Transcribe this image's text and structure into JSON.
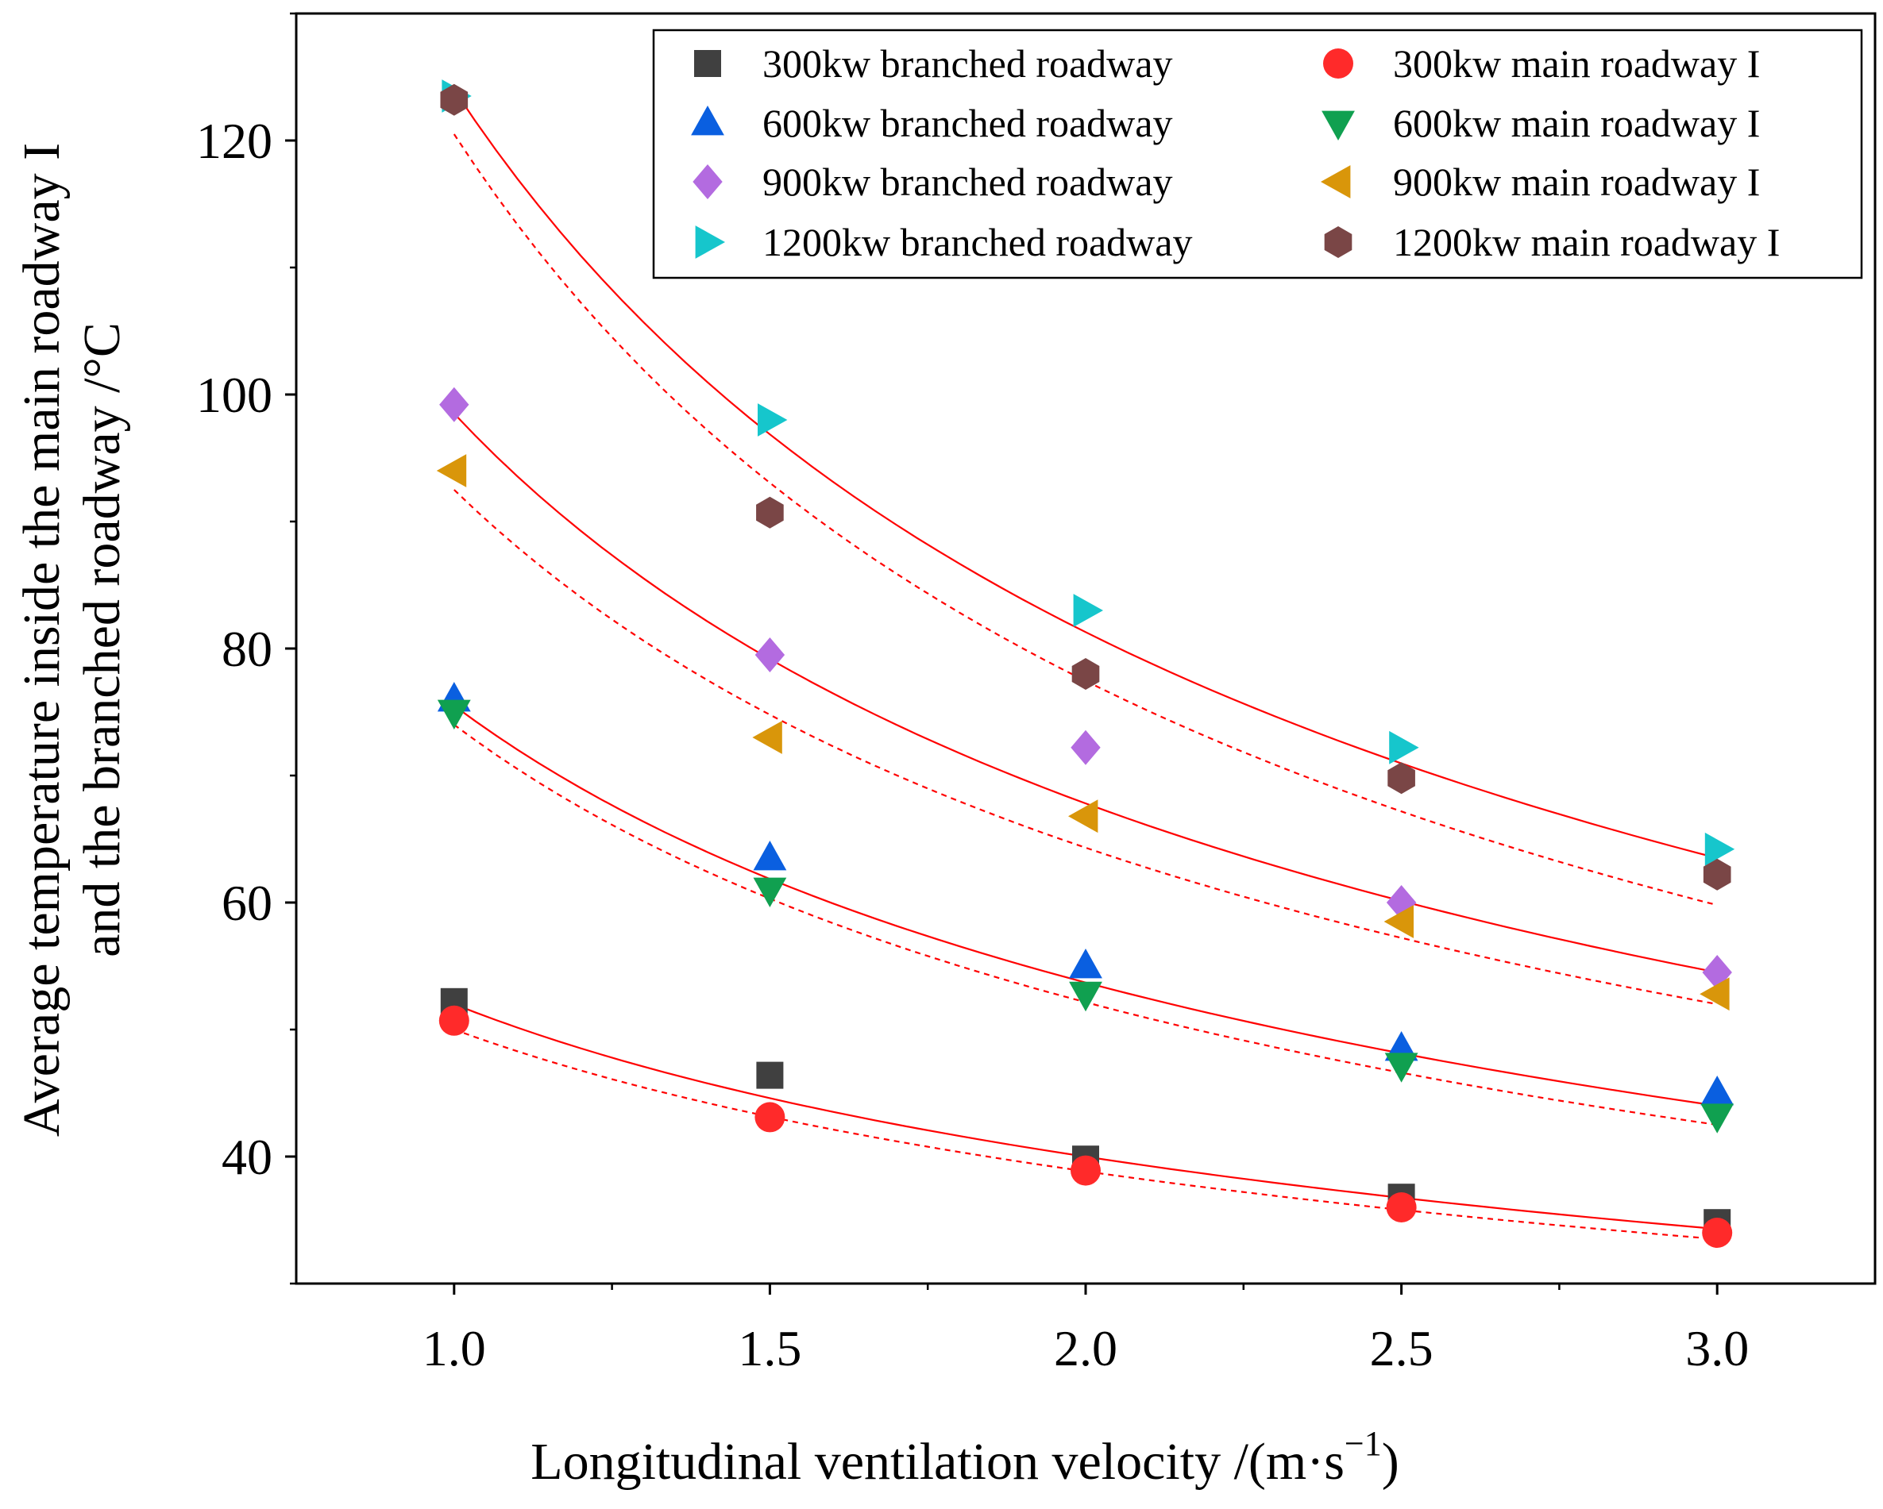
{
  "chart_data": {
    "type": "scatter",
    "title": "",
    "xlabel": "Longitudinal ventilation velocity /(m·s",
    "xlabel_sup": "−1",
    "xlabel_end": ")",
    "ylabel_line1": "Average temperature inside the main roadway I",
    "ylabel_line2": "and the branched roadway /°C",
    "xlim": [
      0.75,
      3.25
    ],
    "ylim": [
      30,
      130
    ],
    "xticks": [
      1.0,
      1.5,
      2.0,
      2.5,
      3.0
    ],
    "xtick_labels": [
      "1.0",
      "1.5",
      "2.0",
      "2.5",
      "3.0"
    ],
    "yticks": [
      40,
      60,
      80,
      100,
      120
    ],
    "ytick_labels": [
      "40",
      "60",
      "80",
      "100",
      "120"
    ],
    "legend_position": "top-right",
    "x": [
      1.0,
      1.5,
      2.0,
      2.5,
      3.0
    ],
    "series": [
      {
        "name": "300kw branched roadway",
        "marker": "square",
        "color": "#404040",
        "values": [
          52.2,
          46.4,
          39.8,
          36.8,
          34.8
        ]
      },
      {
        "name": "300kw main roadway I",
        "marker": "circle",
        "color": "#ff2a2a",
        "values": [
          50.7,
          43.1,
          38.9,
          36.0,
          34.0
        ]
      },
      {
        "name": "600kw branched roadway",
        "marker": "triangle-up",
        "color": "#0a5fe0",
        "values": [
          76.0,
          63.5,
          55.0,
          48.5,
          45.0
        ]
      },
      {
        "name": "600kw main roadway I",
        "marker": "triangle-down",
        "color": "#10a050",
        "values": [
          75.0,
          61.0,
          52.8,
          47.2,
          43.2
        ]
      },
      {
        "name": "900kw branched roadway",
        "marker": "diamond",
        "color": "#b36be0",
        "values": [
          99.2,
          79.5,
          72.2,
          60.0,
          54.5
        ]
      },
      {
        "name": "900kw main roadway I",
        "marker": "triangle-left",
        "color": "#d9960a",
        "values": [
          94.0,
          73.0,
          66.8,
          58.5,
          52.8
        ]
      },
      {
        "name": "1200kw branched roadway",
        "marker": "triangle-right",
        "color": "#16c6cc",
        "values": [
          123.5,
          98.0,
          83.0,
          72.2,
          64.2
        ]
      },
      {
        "name": "1200kw main roadway I",
        "marker": "hexagon",
        "color": "#7a4646",
        "values": [
          123.2,
          90.7,
          78.0,
          69.8,
          62.2
        ]
      }
    ],
    "fit_curves": [
      {
        "style": "solid",
        "color": "#ff0000",
        "x": [
          1.0,
          3.0
        ],
        "values": [
          52.0,
          34.3
        ]
      },
      {
        "style": "dashed",
        "color": "#ff0000",
        "x": [
          1.0,
          3.0
        ],
        "values": [
          50.0,
          33.5
        ]
      },
      {
        "style": "solid",
        "color": "#ff0000",
        "x": [
          1.0,
          3.0
        ],
        "values": [
          75.5,
          44.0
        ]
      },
      {
        "style": "dashed",
        "color": "#ff0000",
        "x": [
          1.0,
          3.0
        ],
        "values": [
          74.0,
          42.5
        ]
      },
      {
        "style": "solid",
        "color": "#ff0000",
        "x": [
          1.0,
          3.0
        ],
        "values": [
          98.5,
          54.5
        ]
      },
      {
        "style": "dashed",
        "color": "#ff0000",
        "x": [
          1.0,
          3.0
        ],
        "values": [
          92.5,
          52.0
        ]
      },
      {
        "style": "solid",
        "color": "#ff0000",
        "x": [
          1.0,
          3.0
        ],
        "values": [
          124.0,
          63.5
        ]
      },
      {
        "style": "dashed",
        "color": "#ff0000",
        "x": [
          1.0,
          3.0
        ],
        "values": [
          120.5,
          59.8
        ]
      }
    ]
  }
}
